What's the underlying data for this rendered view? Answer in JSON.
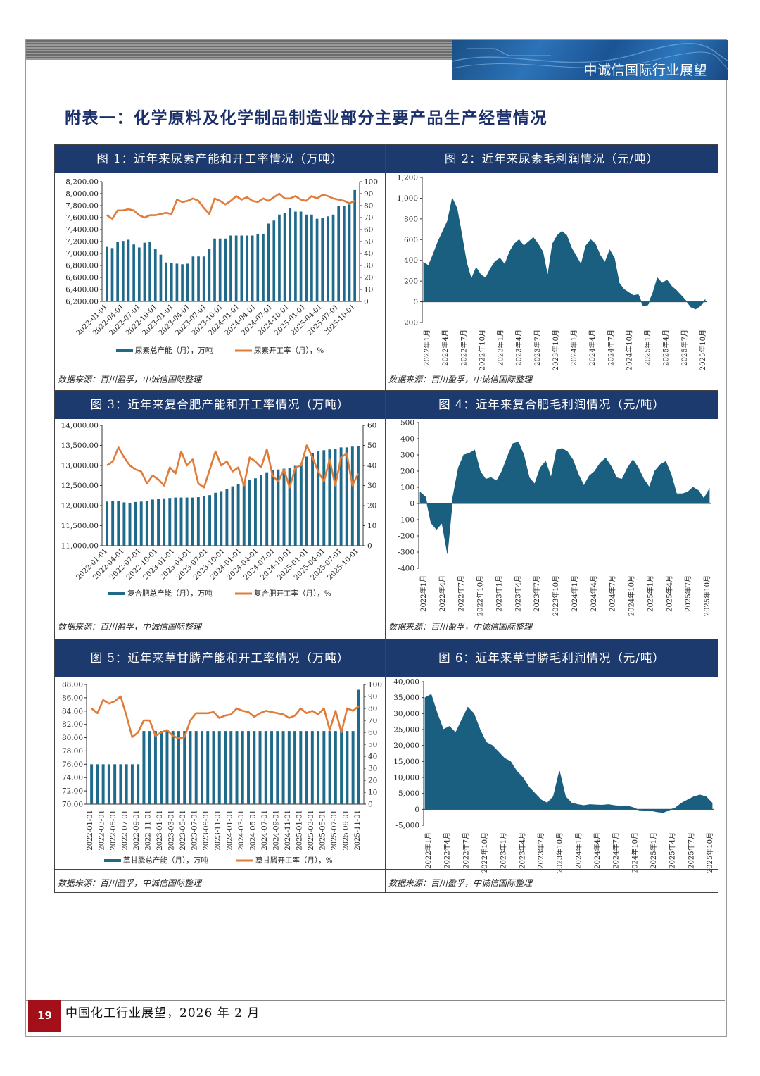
{
  "header": {
    "banner_title": "中诚信国际行业展望"
  },
  "page": {
    "heading": "附表一：化学原料及化学制品制造业部分主要产品生产经营情况"
  },
  "footer": {
    "page_number": "19",
    "text": "中国化工行业展望，2026 年 2 月"
  },
  "source_note": "数据来源：百川盈孚，中诚信国际整理",
  "colors": {
    "bar": "#1f6a8a",
    "line": "#e07b39",
    "area": "#1a5f7f",
    "header": "#1c3a6d"
  },
  "chart_data": [
    {
      "id": "fig1",
      "type": "bar+line",
      "title": "图 1：近年来尿素产能和开工率情况（万吨）",
      "x_ticks": [
        "2022-01-01",
        "2022-04-01",
        "2022-07-01",
        "2022-10-01",
        "2023-01-01",
        "2023-04-01",
        "2023-07-01",
        "2023-10-01",
        "2024-01-01",
        "2024-04-01",
        "2024-07-01",
        "2024-10-01",
        "2025-01-01",
        "2025-04-01",
        "2025-07-01",
        "2025-10-01"
      ],
      "left_axis": {
        "min": 6200,
        "max": 8200,
        "ticks": [
          "6,200.00",
          "6,400.00",
          "6,600.00",
          "6,800.00",
          "7,000.00",
          "7,200.00",
          "7,400.00",
          "7,600.00",
          "7,800.00",
          "8,000.00",
          "8,200.00"
        ]
      },
      "right_axis": {
        "min": 0,
        "max": 100,
        "ticks": [
          "0",
          "10",
          "20",
          "30",
          "40",
          "50",
          "60",
          "70",
          "80",
          "90",
          "100"
        ]
      },
      "series": [
        {
          "name": "尿素总产能（月），万吨",
          "kind": "bar",
          "axis": "left",
          "values": [
            7110,
            7090,
            7200,
            7210,
            7230,
            7150,
            7100,
            7180,
            7200,
            7080,
            6980,
            6850,
            6840,
            6830,
            6820,
            6830,
            6950,
            6950,
            6950,
            7080,
            7250,
            7250,
            7250,
            7300,
            7300,
            7300,
            7300,
            7300,
            7330,
            7330,
            7500,
            7550,
            7650,
            7680,
            7760,
            7700,
            7700,
            7650,
            7650,
            7580,
            7600,
            7620,
            7650,
            7800,
            7800,
            7820,
            8060
          ]
        },
        {
          "name": "尿素开工率（月），%",
          "kind": "line",
          "axis": "right",
          "values": [
            72,
            69,
            76,
            76,
            77,
            76,
            72,
            70,
            72,
            72,
            73,
            74,
            73,
            85,
            83,
            84,
            86,
            84,
            78,
            73,
            86,
            84,
            81,
            84,
            88,
            85,
            87,
            84,
            83,
            86,
            84,
            87,
            90,
            86,
            86,
            88,
            85,
            84,
            88,
            86,
            89,
            88,
            86,
            85,
            84,
            82,
            84
          ]
        }
      ],
      "legend": "bottom"
    },
    {
      "id": "fig2",
      "type": "area",
      "title": "图 2：近年来尿素毛利润情况（元/吨）",
      "x_ticks": [
        "2022年1月",
        "2022年4月",
        "2022年7月",
        "2022年10月",
        "2023年1月",
        "2023年4月",
        "2023年7月",
        "2023年10月",
        "2024年1月",
        "2024年4月",
        "2024年7月",
        "2024年10月",
        "2025年1月",
        "2025年4月",
        "2025年7月",
        "2025年10月"
      ],
      "y_axis": {
        "min": -200,
        "max": 1200,
        "ticks": [
          "-200",
          "0",
          "200",
          "400",
          "600",
          "800",
          "1,000",
          "1,200"
        ]
      },
      "values": [
        380,
        350,
        460,
        580,
        680,
        780,
        1000,
        900,
        650,
        380,
        220,
        330,
        260,
        230,
        320,
        390,
        420,
        360,
        480,
        560,
        600,
        540,
        580,
        620,
        560,
        480,
        250,
        560,
        640,
        680,
        640,
        520,
        440,
        360,
        540,
        600,
        560,
        450,
        380,
        500,
        420,
        180,
        120,
        90,
        60,
        70,
        -40,
        -30,
        80,
        230,
        180,
        210,
        150,
        110,
        60,
        10,
        -50,
        -70,
        -40,
        20
      ]
    },
    {
      "id": "fig3",
      "type": "bar+line",
      "title": "图 3：近年来复合肥产能和开工率情况（万吨）",
      "x_ticks": [
        "2022-01-01",
        "2022-04-01",
        "2022-07-01",
        "2022-10-01",
        "2023-01-01",
        "2023-04-01",
        "2023-07-01",
        "2023-10-01",
        "2024-01-01",
        "2024-04-01",
        "2024-07-01",
        "2024-10-01",
        "2025-01-01",
        "2025-04-01",
        "2025-07-01",
        "2025-10-01"
      ],
      "left_axis": {
        "min": 11000,
        "max": 14000,
        "ticks": [
          "11,000.00",
          "11,500.00",
          "12,000.00",
          "12,500.00",
          "13,000.00",
          "13,500.00",
          "14,000.00"
        ]
      },
      "right_axis": {
        "min": 0,
        "max": 60,
        "ticks": [
          "0",
          "10",
          "20",
          "30",
          "40",
          "50",
          "60"
        ]
      },
      "series": [
        {
          "name": "复合肥总产能（月），万吨",
          "kind": "bar",
          "axis": "left",
          "values": [
            12100,
            12110,
            12110,
            12080,
            12060,
            12090,
            12100,
            12110,
            12150,
            12160,
            12180,
            12190,
            12200,
            12200,
            12200,
            12200,
            12210,
            12240,
            12260,
            12320,
            12360,
            12420,
            12480,
            12530,
            12580,
            12650,
            12680,
            12760,
            12830,
            12880,
            12900,
            12920,
            12940,
            12990,
            13050,
            13220,
            13300,
            13350,
            13380,
            13400,
            13420,
            13450,
            13450,
            13470,
            13480
          ]
        },
        {
          "name": "复合肥开工率（月），%",
          "kind": "line",
          "axis": "right",
          "values": [
            40,
            42,
            49,
            44,
            40,
            38,
            37,
            31,
            35,
            33,
            30,
            39,
            36,
            47,
            40,
            43,
            31,
            29,
            38,
            47,
            40,
            42,
            37,
            39,
            30,
            44,
            42,
            39,
            48,
            35,
            32,
            38,
            29,
            39,
            40,
            50,
            44,
            37,
            32,
            43,
            30,
            44,
            46,
            30,
            36
          ]
        }
      ],
      "legend": "bottom"
    },
    {
      "id": "fig4",
      "type": "area",
      "title": "图 4：近年来复合肥毛利润情况（元/吨）",
      "x_ticks": [
        "2022年1月",
        "2022年4月",
        "2022年7月",
        "2022年10月",
        "2023年1月",
        "2023年4月",
        "2023年7月",
        "2023年10月",
        "2024年1月",
        "2024年4月",
        "2024年7月",
        "2024年10月",
        "2025年1月",
        "2025年4月",
        "2025年7月",
        "2025年10月"
      ],
      "y_axis": {
        "min": -400,
        "max": 500,
        "ticks": [
          "-400",
          "-300",
          "-200",
          "-100",
          "0",
          "100",
          "200",
          "300",
          "400",
          "500"
        ]
      },
      "values": [
        70,
        40,
        -120,
        -160,
        -120,
        -310,
        40,
        220,
        300,
        310,
        330,
        200,
        150,
        160,
        140,
        200,
        290,
        370,
        380,
        300,
        160,
        120,
        220,
        260,
        160,
        330,
        340,
        320,
        270,
        180,
        110,
        170,
        200,
        250,
        280,
        230,
        160,
        150,
        220,
        270,
        220,
        150,
        100,
        200,
        240,
        260,
        180,
        60,
        60,
        70,
        100,
        80,
        30,
        90
      ]
    },
    {
      "id": "fig5",
      "type": "bar+line",
      "title": "图 5：近年来草甘膦产能和开工率情况（万吨）",
      "x_ticks": [
        "2022-01-01",
        "2022-03-01",
        "2022-05-01",
        "2022-07-01",
        "2022-09-01",
        "2022-11-01",
        "2023-01-01",
        "2023-03-01",
        "2023-05-01",
        "2023-07-01",
        "2023-09-01",
        "2023-11-01",
        "2024-01-01",
        "2024-03-01",
        "2024-05-01",
        "2024-07-01",
        "2024-09-01",
        "2024-11-01",
        "2025-01-01",
        "2025-03-01",
        "2025-05-01",
        "2025-07-01",
        "2025-09-01",
        "2025-11-01"
      ],
      "left_axis": {
        "min": 70,
        "max": 88,
        "ticks": [
          "70.00",
          "72.00",
          "74.00",
          "76.00",
          "78.00",
          "80.00",
          "82.00",
          "84.00",
          "86.00",
          "88.00"
        ]
      },
      "right_axis": {
        "min": 0,
        "max": 100,
        "ticks": [
          "0",
          "10",
          "20",
          "30",
          "40",
          "50",
          "60",
          "70",
          "80",
          "90",
          "100"
        ]
      },
      "series": [
        {
          "name": "草甘膦总产能（月），万吨",
          "kind": "bar",
          "axis": "left",
          "values": [
            76,
            76,
            76,
            76,
            76,
            76,
            76,
            76,
            76,
            81,
            81,
            81,
            81,
            81,
            81,
            81,
            81,
            81,
            81,
            81,
            81,
            81,
            81,
            81,
            81,
            81,
            81,
            81,
            81,
            81,
            81,
            81,
            81,
            81,
            81,
            81,
            81,
            81,
            81,
            81,
            81,
            81,
            81,
            81,
            81,
            81,
            87.2
          ]
        },
        {
          "name": "草甘膦开工率（月），%",
          "kind": "line",
          "axis": "right",
          "values": [
            80,
            76,
            87,
            84,
            86,
            90,
            74,
            56,
            60,
            70,
            70,
            57,
            60,
            62,
            57,
            55,
            56,
            70,
            76,
            76,
            76,
            77,
            72,
            74,
            75,
            80,
            78,
            77,
            73,
            76,
            78,
            77,
            76,
            75,
            72,
            74,
            80,
            76,
            78,
            75,
            80,
            62,
            78,
            60,
            80,
            78,
            82
          ]
        }
      ],
      "legend": "bottom"
    },
    {
      "id": "fig6",
      "type": "area",
      "title": "图 6：近年来草甘膦毛利润情况（元/吨）",
      "x_ticks": [
        "2022年1月",
        "2022年4月",
        "2022年7月",
        "2022年10月",
        "2023年1月",
        "2023年4月",
        "2023年7月",
        "2023年10月",
        "2024年1月",
        "2024年4月",
        "2024年7月",
        "2024年10月",
        "2025年1月",
        "2025年4月",
        "2025年7月",
        "2025年10月"
      ],
      "y_axis": {
        "min": -5000,
        "max": 40000,
        "ticks": [
          "-5,000",
          "0",
          "5,000",
          "10,000",
          "15,000",
          "20,000",
          "25,000",
          "30,000",
          "35,000",
          "40,000"
        ]
      },
      "values": [
        35000,
        36000,
        30000,
        25000,
        26000,
        24000,
        28000,
        32000,
        30000,
        25000,
        21000,
        20000,
        18000,
        16000,
        15000,
        12000,
        10000,
        7000,
        5000,
        3000,
        2000,
        4000,
        12000,
        4000,
        2000,
        1500,
        1200,
        1500,
        1400,
        1300,
        1500,
        1200,
        1000,
        1100,
        600,
        -200,
        -300,
        -400,
        -800,
        -1000,
        -200,
        500,
        2000,
        3000,
        4000,
        4500,
        4000,
        2000
      ]
    }
  ]
}
